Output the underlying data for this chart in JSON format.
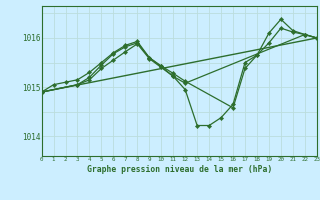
{
  "title": "Graphe pression niveau de la mer (hPa)",
  "bg_color": "#cceeff",
  "grid_color_v": "#bbdddd",
  "grid_color_h": "#bbdddd",
  "line_color": "#2d6e2d",
  "xlim": [
    0,
    23
  ],
  "ylim": [
    1013.6,
    1016.65
  ],
  "yticks": [
    1014,
    1015,
    1016
  ],
  "xticks": [
    0,
    1,
    2,
    3,
    4,
    5,
    6,
    7,
    8,
    9,
    10,
    11,
    12,
    13,
    14,
    15,
    16,
    17,
    18,
    19,
    20,
    21,
    22,
    23
  ],
  "series": [
    {
      "x": [
        0,
        1,
        2,
        3,
        4,
        5,
        6,
        7,
        8,
        9,
        10,
        11,
        12,
        13,
        14,
        15,
        16,
        17,
        18,
        19,
        20,
        21,
        22,
        23
      ],
      "y": [
        1014.9,
        1015.05,
        1015.1,
        1015.15,
        1015.3,
        1015.5,
        1015.7,
        1015.85,
        1015.93,
        1015.6,
        1015.42,
        1015.22,
        1014.95,
        1014.22,
        1014.22,
        1014.38,
        1014.65,
        1015.5,
        1015.65,
        1016.1,
        1016.38,
        1016.15,
        1016.07,
        1016.0
      ]
    },
    {
      "x": [
        0,
        3,
        4,
        5,
        6,
        7,
        8,
        9,
        10,
        11,
        12,
        16,
        17,
        18,
        19,
        20,
        21,
        22,
        23
      ],
      "y": [
        1014.9,
        1015.05,
        1015.2,
        1015.45,
        1015.68,
        1015.82,
        1015.9,
        1015.6,
        1015.43,
        1015.28,
        1015.12,
        1014.58,
        1015.38,
        1015.65,
        1015.9,
        1016.2,
        1016.12,
        1016.07,
        1016.0
      ]
    },
    {
      "x": [
        0,
        3,
        4,
        5,
        6,
        7,
        8,
        9,
        10,
        11,
        12,
        22,
        23
      ],
      "y": [
        1014.9,
        1015.05,
        1015.15,
        1015.38,
        1015.55,
        1015.72,
        1015.88,
        1015.58,
        1015.4,
        1015.22,
        1015.08,
        1016.07,
        1016.0
      ]
    },
    {
      "x": [
        0,
        23
      ],
      "y": [
        1014.9,
        1016.0
      ]
    }
  ]
}
